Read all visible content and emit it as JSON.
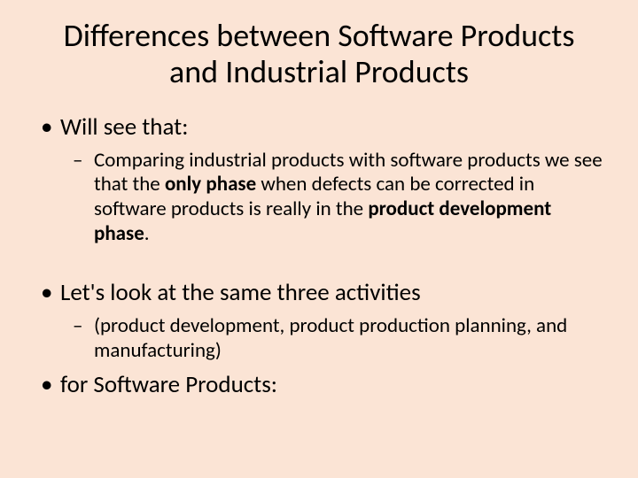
{
  "slide": {
    "title": "Differences between Software Products and Industrial Products",
    "background_color": "#fbe4d5",
    "text_color": "#000000",
    "title_fontsize": 36,
    "level1_fontsize": 27,
    "level2_fontsize": 23,
    "font_family": "Calibri",
    "bullets": [
      {
        "level": 1,
        "text": "Will see that:"
      },
      {
        "level": 2,
        "text_before": "Comparing industrial products with software products we see that the ",
        "bold1": "only phase",
        "text_mid": " when defects can be corrected in software products is really in the ",
        "bold2": "product development phase",
        "text_after": "."
      },
      {
        "level": 1,
        "text": "Let's look at the same three activities"
      },
      {
        "level": 2,
        "text": "(product development, product production planning, and manufacturing)"
      },
      {
        "level": 1,
        "text": "for Software Products:"
      }
    ]
  }
}
